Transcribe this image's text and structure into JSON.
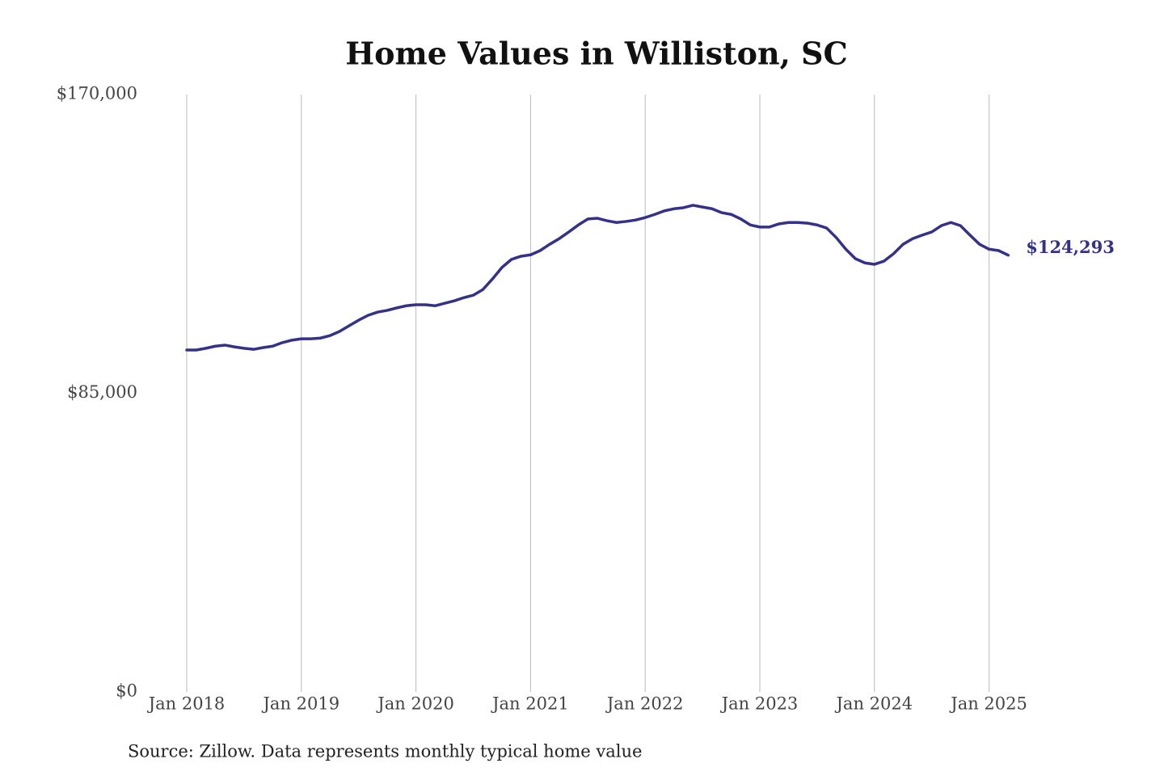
{
  "chart_data": {
    "type": "line",
    "title": "Home Values in Williston, SC",
    "source": "Source: Zillow. Data represents monthly typical home value",
    "x": [
      "2018-01",
      "2018-02",
      "2018-03",
      "2018-04",
      "2018-05",
      "2018-06",
      "2018-07",
      "2018-08",
      "2018-09",
      "2018-10",
      "2018-11",
      "2018-12",
      "2019-01",
      "2019-02",
      "2019-03",
      "2019-04",
      "2019-05",
      "2019-06",
      "2019-07",
      "2019-08",
      "2019-09",
      "2019-10",
      "2019-11",
      "2019-12",
      "2020-01",
      "2020-02",
      "2020-03",
      "2020-04",
      "2020-05",
      "2020-06",
      "2020-07",
      "2020-08",
      "2020-09",
      "2020-10",
      "2020-11",
      "2020-12",
      "2021-01",
      "2021-02",
      "2021-03",
      "2021-04",
      "2021-05",
      "2021-06",
      "2021-07",
      "2021-08",
      "2021-09",
      "2021-10",
      "2021-11",
      "2021-12",
      "2022-01",
      "2022-02",
      "2022-03",
      "2022-04",
      "2022-05",
      "2022-06",
      "2022-07",
      "2022-08",
      "2022-09",
      "2022-10",
      "2022-11",
      "2022-12",
      "2023-01",
      "2023-02",
      "2023-03",
      "2023-04",
      "2023-05",
      "2023-06",
      "2023-07",
      "2023-08",
      "2023-09",
      "2023-10",
      "2023-11",
      "2023-12",
      "2024-01",
      "2024-02",
      "2024-03",
      "2024-04",
      "2024-05",
      "2024-06",
      "2024-07",
      "2024-08",
      "2024-09",
      "2024-10",
      "2024-11",
      "2024-12",
      "2025-01",
      "2025-02",
      "2025-03"
    ],
    "series": [
      {
        "color": "#33318a",
        "values": [
          97300,
          97300,
          97800,
          98400,
          98700,
          98200,
          97800,
          97500,
          98000,
          98400,
          99400,
          100100,
          100500,
          100500,
          100700,
          101400,
          102600,
          104200,
          105800,
          107200,
          108100,
          108600,
          109300,
          109900,
          110200,
          110200,
          109900,
          110600,
          111300,
          112200,
          112900,
          114500,
          117500,
          120800,
          123100,
          124000,
          124400,
          125600,
          127400,
          129000,
          130900,
          132900,
          134600,
          134800,
          134100,
          133600,
          133900,
          134300,
          135000,
          135900,
          136900,
          137500,
          137800,
          138500,
          138000,
          137500,
          136400,
          135900,
          134600,
          132900,
          132300,
          132300,
          133200,
          133600,
          133600,
          133400,
          132900,
          132000,
          129300,
          126000,
          123300,
          122100,
          121700,
          122600,
          124700,
          127400,
          129000,
          130000,
          130900,
          132700,
          133600,
          132700,
          130000,
          127400,
          126000,
          125600,
          124293
        ],
        "value_labels": [
          null,
          null,
          null,
          null,
          null,
          null,
          null,
          null,
          null,
          null,
          null,
          null,
          null,
          null,
          null,
          null,
          null,
          null,
          null,
          null,
          null,
          null,
          null,
          null,
          null,
          null,
          null,
          null,
          null,
          null,
          null,
          null,
          null,
          null,
          null,
          null,
          null,
          null,
          null,
          null,
          null,
          null,
          null,
          null,
          null,
          null,
          null,
          null,
          null,
          null,
          null,
          null,
          null,
          null,
          null,
          null,
          null,
          null,
          null,
          null,
          null,
          null,
          null,
          null,
          null,
          null,
          null,
          null,
          null,
          null,
          null,
          null,
          null,
          null,
          null,
          null,
          null,
          null,
          null,
          null,
          null,
          null,
          null,
          null,
          null,
          null,
          "$124,293"
        ]
      }
    ],
    "ylim": [
      0,
      170000
    ],
    "yticks": [
      {
        "value": 0,
        "label": "$0"
      },
      {
        "value": 85000,
        "label": "$85,000"
      },
      {
        "value": 170000,
        "label": "$170,000"
      }
    ],
    "xticks": [
      {
        "value": "2018-01",
        "label": "Jan 2018"
      },
      {
        "value": "2019-01",
        "label": "Jan 2019"
      },
      {
        "value": "2020-01",
        "label": "Jan 2020"
      },
      {
        "value": "2021-01",
        "label": "Jan 2021"
      },
      {
        "value": "2022-01",
        "label": "Jan 2022"
      },
      {
        "value": "2023-01",
        "label": "Jan 2023"
      },
      {
        "value": "2024-01",
        "label": "Jan 2024"
      },
      {
        "value": "2025-01",
        "label": "Jan 2025"
      }
    ],
    "grid": "x"
  }
}
